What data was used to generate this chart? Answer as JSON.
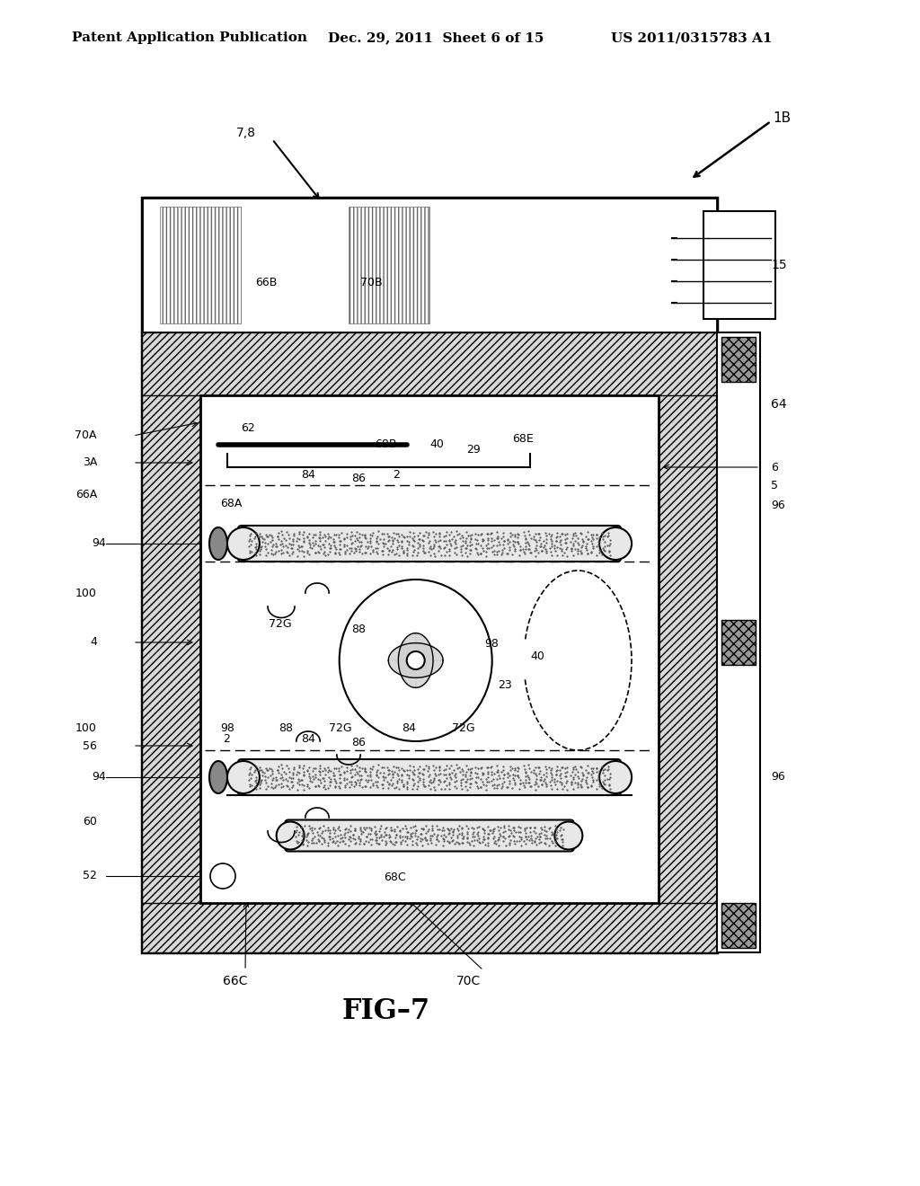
{
  "bg_color": "#ffffff",
  "line_color": "#000000",
  "header_text": "Patent Application Publication",
  "header_date": "Dec. 29, 2011  Sheet 6 of 15",
  "header_patent": "US 2011/0315783 A1",
  "fig_label": "FIG–7"
}
